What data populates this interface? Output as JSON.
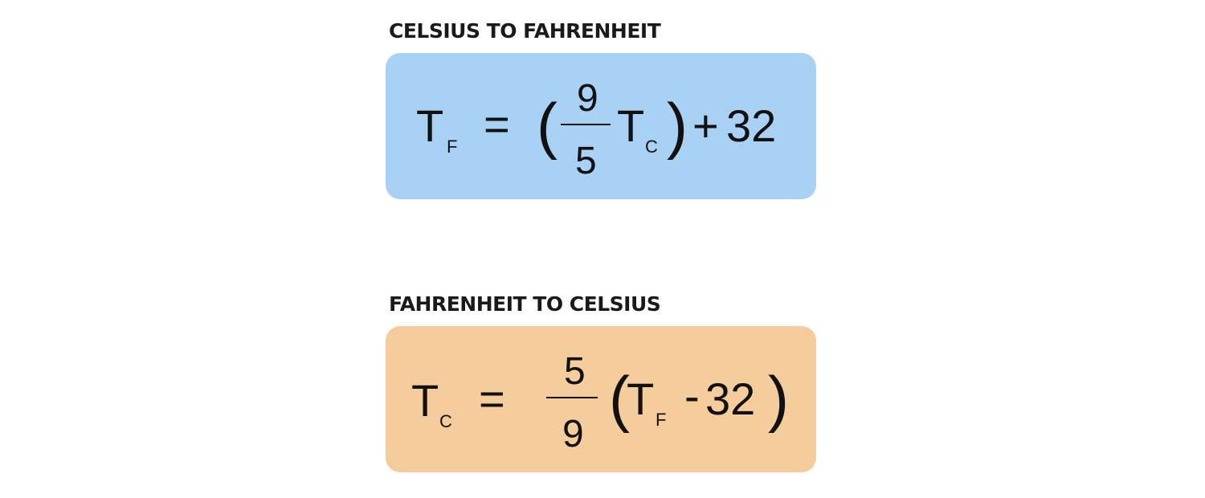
{
  "celsius_to_fahrenheit": {
    "title": "CELSIUS TO FAHRENHEIT",
    "color": "#a8d1f4",
    "lhs": {
      "var": "T",
      "sub": "F"
    },
    "equals": "=",
    "open_paren": "(",
    "numerator": "9",
    "denominator": "5",
    "term": {
      "var": "T",
      "sub": "C"
    },
    "close_paren": ")",
    "plus": "+",
    "constant": "32"
  },
  "fahrenheit_to_celsius": {
    "title": "FAHRENHEIT TO CELSIUS",
    "color": "#f5cc9b",
    "lhs": {
      "var": "T",
      "sub": "C"
    },
    "equals": "=",
    "numerator": "5",
    "denominator": "9",
    "open_paren": "(",
    "term": {
      "var": "T",
      "sub": "F"
    },
    "minus": "-",
    "constant": "32",
    "close_paren": ")"
  }
}
